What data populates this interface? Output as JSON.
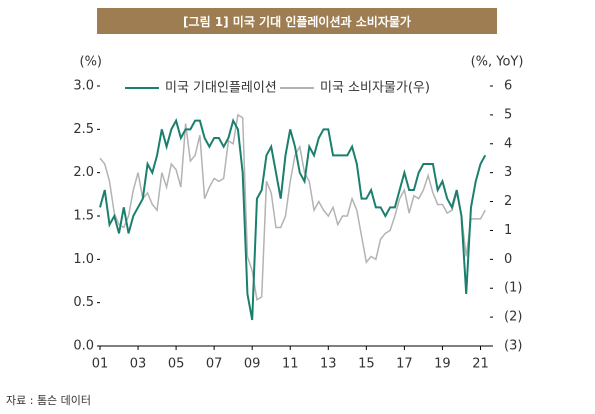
{
  "header": {
    "title": "[그림 1] 미국 기대 인플레이션과 소비자물가"
  },
  "chart_data": {
    "type": "line",
    "y_unit": "(%)",
    "y2_unit": "(%, YoY)",
    "x": [
      2001,
      2001.25,
      2001.5,
      2001.75,
      2002,
      2002.25,
      2002.5,
      2002.75,
      2003,
      2003.25,
      2003.5,
      2003.75,
      2004,
      2004.25,
      2004.5,
      2004.75,
      2005,
      2005.25,
      2005.5,
      2005.75,
      2006,
      2006.25,
      2006.5,
      2006.75,
      2007,
      2007.25,
      2007.5,
      2007.75,
      2008,
      2008.25,
      2008.5,
      2008.75,
      2009,
      2009.25,
      2009.5,
      2009.75,
      2010,
      2010.25,
      2010.5,
      2010.75,
      2011,
      2011.25,
      2011.5,
      2011.75,
      2012,
      2012.25,
      2012.5,
      2012.75,
      2013,
      2013.25,
      2013.5,
      2013.75,
      2014,
      2014.25,
      2014.5,
      2014.75,
      2015,
      2015.25,
      2015.5,
      2015.75,
      2016,
      2016.25,
      2016.5,
      2016.75,
      2017,
      2017.25,
      2017.5,
      2017.75,
      2018,
      2018.25,
      2018.5,
      2018.75,
      2019,
      2019.25,
      2019.5,
      2019.75,
      2020,
      2020.25,
      2020.5,
      2020.75,
      2021,
      2021.25
    ],
    "series": [
      {
        "name": "미국 기대인플레이션",
        "color": "#1b7f6e",
        "values": [
          1.6,
          1.8,
          1.4,
          1.5,
          1.3,
          1.6,
          1.3,
          1.5,
          1.6,
          1.7,
          2.1,
          2.0,
          2.2,
          2.5,
          2.3,
          2.5,
          2.6,
          2.4,
          2.5,
          2.5,
          2.6,
          2.6,
          2.4,
          2.3,
          2.4,
          2.4,
          2.3,
          2.4,
          2.6,
          2.5,
          2.0,
          0.6,
          0.3,
          1.7,
          1.8,
          2.2,
          2.3,
          2.0,
          1.7,
          2.2,
          2.5,
          2.3,
          2.0,
          1.9,
          2.3,
          2.2,
          2.4,
          2.5,
          2.5,
          2.2,
          2.2,
          2.2,
          2.2,
          2.3,
          2.1,
          1.7,
          1.7,
          1.8,
          1.6,
          1.6,
          1.5,
          1.6,
          1.6,
          1.8,
          2.0,
          1.8,
          1.8,
          2.0,
          2.1,
          2.1,
          2.1,
          1.8,
          1.9,
          1.7,
          1.6,
          1.8,
          1.5,
          0.6,
          1.6,
          1.9,
          2.1,
          2.2
        ]
      },
      {
        "name": "미국 소비자물가(우)",
        "color": "#b3b3b3",
        "axis": "y2",
        "values": [
          3.5,
          3.3,
          2.7,
          1.6,
          1.2,
          1.1,
          1.5,
          2.4,
          3.0,
          2.1,
          2.3,
          1.9,
          1.7,
          3.0,
          2.5,
          3.3,
          3.1,
          2.5,
          4.7,
          3.4,
          3.6,
          4.3,
          2.1,
          2.5,
          2.8,
          2.7,
          2.8,
          4.1,
          4.0,
          5.0,
          4.9,
          0.1,
          -0.4,
          -1.4,
          -1.3,
          2.7,
          2.3,
          1.1,
          1.1,
          1.5,
          2.7,
          3.6,
          3.9,
          3.0,
          2.7,
          1.7,
          2.0,
          1.7,
          1.5,
          1.8,
          1.2,
          1.5,
          1.5,
          2.1,
          1.7,
          0.8,
          -0.1,
          0.1,
          0.0,
          0.7,
          0.9,
          1.0,
          1.5,
          2.1,
          2.4,
          1.6,
          2.2,
          2.1,
          2.4,
          2.9,
          2.3,
          1.9,
          1.9,
          1.6,
          1.7,
          2.3,
          1.5,
          0.1,
          1.4,
          1.4,
          1.4,
          1.7
        ]
      }
    ],
    "xlim": [
      2001,
      2021.5
    ],
    "xticks": [
      {
        "value": 2001,
        "label": "01"
      },
      {
        "value": 2003,
        "label": "03"
      },
      {
        "value": 2005,
        "label": "05"
      },
      {
        "value": 2007,
        "label": "07"
      },
      {
        "value": 2009,
        "label": "09"
      },
      {
        "value": 2011,
        "label": "11"
      },
      {
        "value": 2013,
        "label": "13"
      },
      {
        "value": 2015,
        "label": "15"
      },
      {
        "value": 2017,
        "label": "17"
      },
      {
        "value": 2019,
        "label": "19"
      },
      {
        "value": 2021,
        "label": "21"
      }
    ],
    "ylim": [
      0,
      3
    ],
    "yticks": [
      {
        "value": 0,
        "label": "0.0"
      },
      {
        "value": 0.5,
        "label": "0.5"
      },
      {
        "value": 1,
        "label": "1.0"
      },
      {
        "value": 1.5,
        "label": "1.5"
      },
      {
        "value": 2,
        "label": "2.0"
      },
      {
        "value": 2.5,
        "label": "2.5"
      },
      {
        "value": 3,
        "label": "3.0"
      }
    ],
    "y2lim": [
      -3,
      6
    ],
    "y2ticks": [
      {
        "value": -3,
        "label": "(3)"
      },
      {
        "value": -2,
        "label": "(2)"
      },
      {
        "value": -1,
        "label": "(1)"
      },
      0,
      1,
      2,
      3,
      4,
      5,
      6
    ],
    "legend": "top"
  },
  "footer": {
    "source": "자료 : 톰슨 데이터"
  }
}
